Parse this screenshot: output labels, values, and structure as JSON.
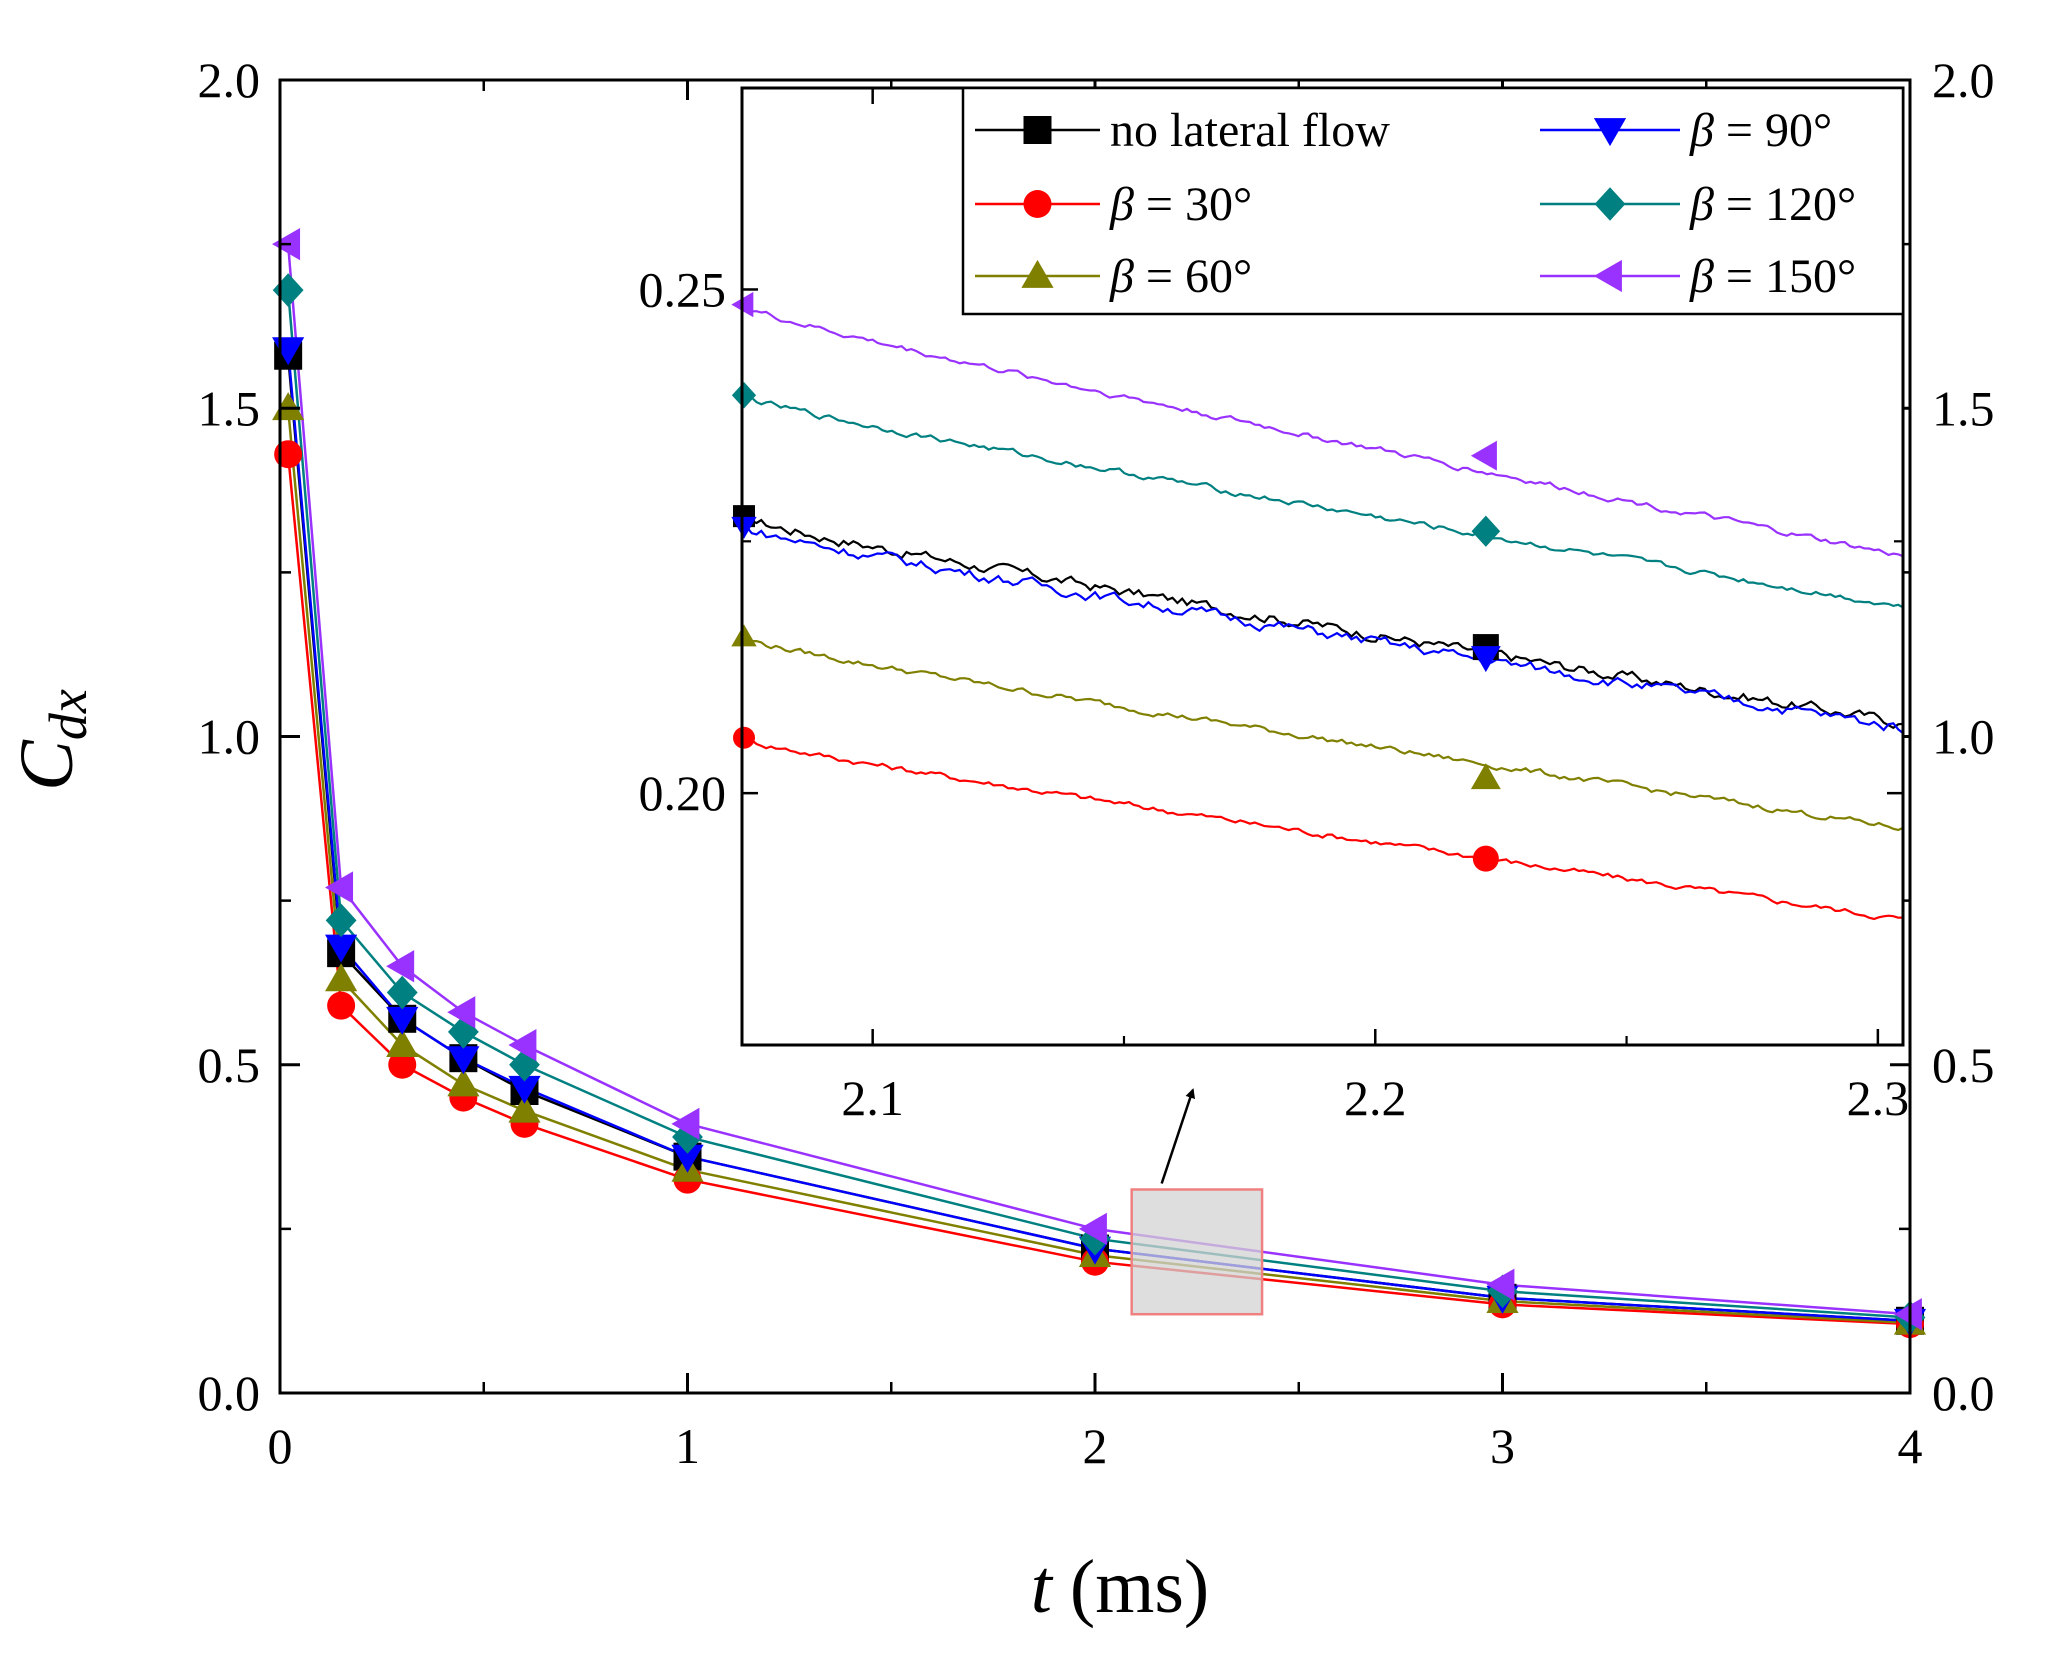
{
  "chart_data": {
    "type": "line",
    "xlabel": {
      "var": "t",
      "unit": "(ms)"
    },
    "ylabel": {
      "var": "C",
      "sub": "dx"
    },
    "xlim": [
      0,
      4
    ],
    "ylim": [
      0,
      2
    ],
    "x_ticks": [
      0,
      1,
      2,
      3,
      4
    ],
    "x_tick_labels": [
      "0",
      "1",
      "2",
      "3",
      "4"
    ],
    "y_ticks": [
      0,
      0.5,
      1.0,
      1.5,
      2.0
    ],
    "y_tick_labels": [
      "0.0",
      "0.5",
      "1.0",
      "1.5",
      "2.0"
    ],
    "right_y_tick_labels": [
      "0.0",
      "0.5",
      "1.0",
      "1.5",
      "2.0"
    ],
    "grid": false,
    "legend_placement": "inside inset, top",
    "zoom_box": {
      "x": [
        2.09,
        2.41
      ],
      "y": [
        0.12,
        0.31
      ]
    },
    "series": [
      {
        "name": "no lateral flow",
        "beta_value": "",
        "color": "#000000",
        "marker": "square",
        "x": [
          0.02,
          0.15,
          0.3,
          0.45,
          0.6,
          1.0,
          2.0,
          3.0,
          4.0
        ],
        "values": [
          1.58,
          0.67,
          0.57,
          0.51,
          0.46,
          0.36,
          0.22,
          0.145,
          0.11
        ]
      },
      {
        "name": "",
        "beta_value": "= 30°",
        "color": "#ff0000",
        "marker": "circle",
        "x": [
          0.02,
          0.15,
          0.3,
          0.45,
          0.6,
          1.0,
          2.0,
          3.0,
          4.0
        ],
        "values": [
          1.43,
          0.59,
          0.5,
          0.45,
          0.41,
          0.325,
          0.2,
          0.135,
          0.105
        ]
      },
      {
        "name": "",
        "beta_value": "= 60°",
        "color": "#808000",
        "marker": "triangle-up",
        "x": [
          0.02,
          0.15,
          0.3,
          0.45,
          0.6,
          1.0,
          2.0,
          3.0,
          4.0
        ],
        "values": [
          1.5,
          0.63,
          0.53,
          0.47,
          0.43,
          0.34,
          0.21,
          0.14,
          0.107
        ]
      },
      {
        "name": "",
        "beta_value": "= 90°",
        "color": "#0000ff",
        "marker": "triangle-down",
        "x": [
          0.02,
          0.15,
          0.3,
          0.45,
          0.6,
          1.0,
          2.0,
          3.0,
          4.0
        ],
        "values": [
          1.59,
          0.68,
          0.57,
          0.51,
          0.465,
          0.36,
          0.22,
          0.145,
          0.11
        ]
      },
      {
        "name": "",
        "beta_value": "= 120°",
        "color": "#008080",
        "marker": "diamond",
        "x": [
          0.02,
          0.15,
          0.3,
          0.45,
          0.6,
          1.0,
          2.0,
          3.0,
          4.0
        ],
        "values": [
          1.68,
          0.72,
          0.61,
          0.55,
          0.5,
          0.39,
          0.235,
          0.155,
          0.115
        ]
      },
      {
        "name": "",
        "beta_value": "= 150°",
        "color": "#9a32ff",
        "marker": "triangle-left",
        "x": [
          0.02,
          0.15,
          0.3,
          0.45,
          0.6,
          1.0,
          2.0,
          3.0,
          4.0
        ],
        "values": [
          1.75,
          0.77,
          0.65,
          0.58,
          0.53,
          0.41,
          0.25,
          0.165,
          0.12
        ]
      }
    ],
    "inset": {
      "xlim": [
        2.074,
        2.305
      ],
      "ylim": [
        0.175,
        0.27
      ],
      "x_ticks": [
        2.1,
        2.2,
        2.3
      ],
      "x_tick_labels": [
        "2.1",
        "2.2",
        "2.3"
      ],
      "y_ticks": [
        0.2,
        0.25
      ],
      "y_tick_labels": [
        "0.20",
        "0.25"
      ],
      "series": [
        {
          "x": [
            2.074,
            2.305
          ],
          "values": [
            0.2275,
            0.207
          ]
        },
        {
          "x": [
            2.074,
            2.305
          ],
          "values": [
            0.2055,
            0.1875
          ]
        },
        {
          "x": [
            2.074,
            2.305
          ],
          "values": [
            0.2155,
            0.1965
          ]
        },
        {
          "x": [
            2.074,
            2.305
          ],
          "values": [
            0.2265,
            0.2065
          ]
        },
        {
          "x": [
            2.074,
            2.305
          ],
          "values": [
            0.2395,
            0.2185
          ]
        },
        {
          "x": [
            2.074,
            2.305
          ],
          "values": [
            0.2485,
            0.2235
          ]
        }
      ],
      "marker_x": 2.222,
      "marker_values": [
        0.2145,
        0.1935,
        0.2015,
        0.2135,
        0.226,
        0.2335
      ]
    }
  }
}
